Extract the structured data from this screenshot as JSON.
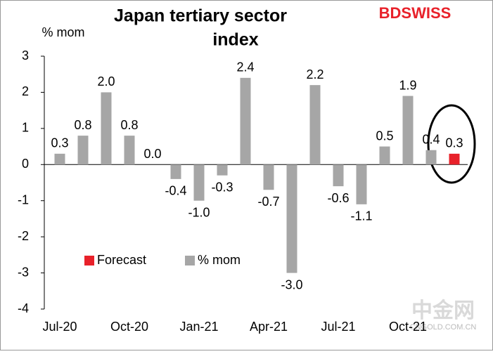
{
  "chart_data": {
    "type": "bar",
    "title": "Japan tertiary sector index",
    "y_label": "% mom",
    "logo": "BDSWISS",
    "watermark": "中金网",
    "watermark_sub": "CNGOLD.COM.CN",
    "categories": [
      "Jul-20",
      null,
      null,
      "Oct-20",
      null,
      null,
      "Jan-21",
      null,
      null,
      "Apr-21",
      null,
      null,
      "Jul-21",
      null,
      null,
      "Oct-21",
      null,
      null
    ],
    "series": [
      {
        "name": "% mom",
        "color": "#a6a6a6",
        "values": [
          0.3,
          0.8,
          2.0,
          0.8,
          0.0,
          -0.4,
          -1.0,
          -0.3,
          2.4,
          -0.7,
          -3.0,
          2.2,
          -0.6,
          -1.1,
          0.5,
          1.9,
          0.4,
          null
        ],
        "value_labels": [
          "0.3",
          "0.8",
          "2.0",
          "0.8",
          "0.0",
          "-0.4",
          "-1.0",
          "-0.3",
          "2.4",
          "-0.7",
          "-3.0",
          "2.2",
          "-0.6",
          "-1.1",
          "0.5",
          "1.9",
          "0.4",
          null
        ]
      },
      {
        "name": "Forecast",
        "color": "#e8212a",
        "values": [
          null,
          null,
          null,
          null,
          null,
          null,
          null,
          null,
          null,
          null,
          null,
          null,
          null,
          null,
          null,
          null,
          null,
          0.3
        ],
        "value_labels": [
          null,
          null,
          null,
          null,
          null,
          null,
          null,
          null,
          null,
          null,
          null,
          null,
          null,
          null,
          null,
          null,
          null,
          "0.3"
        ]
      }
    ],
    "ylim": [
      -4,
      3
    ],
    "yticks": [
      -4,
      -3,
      -2,
      -1,
      0,
      1,
      2,
      3
    ],
    "grid": false
  }
}
